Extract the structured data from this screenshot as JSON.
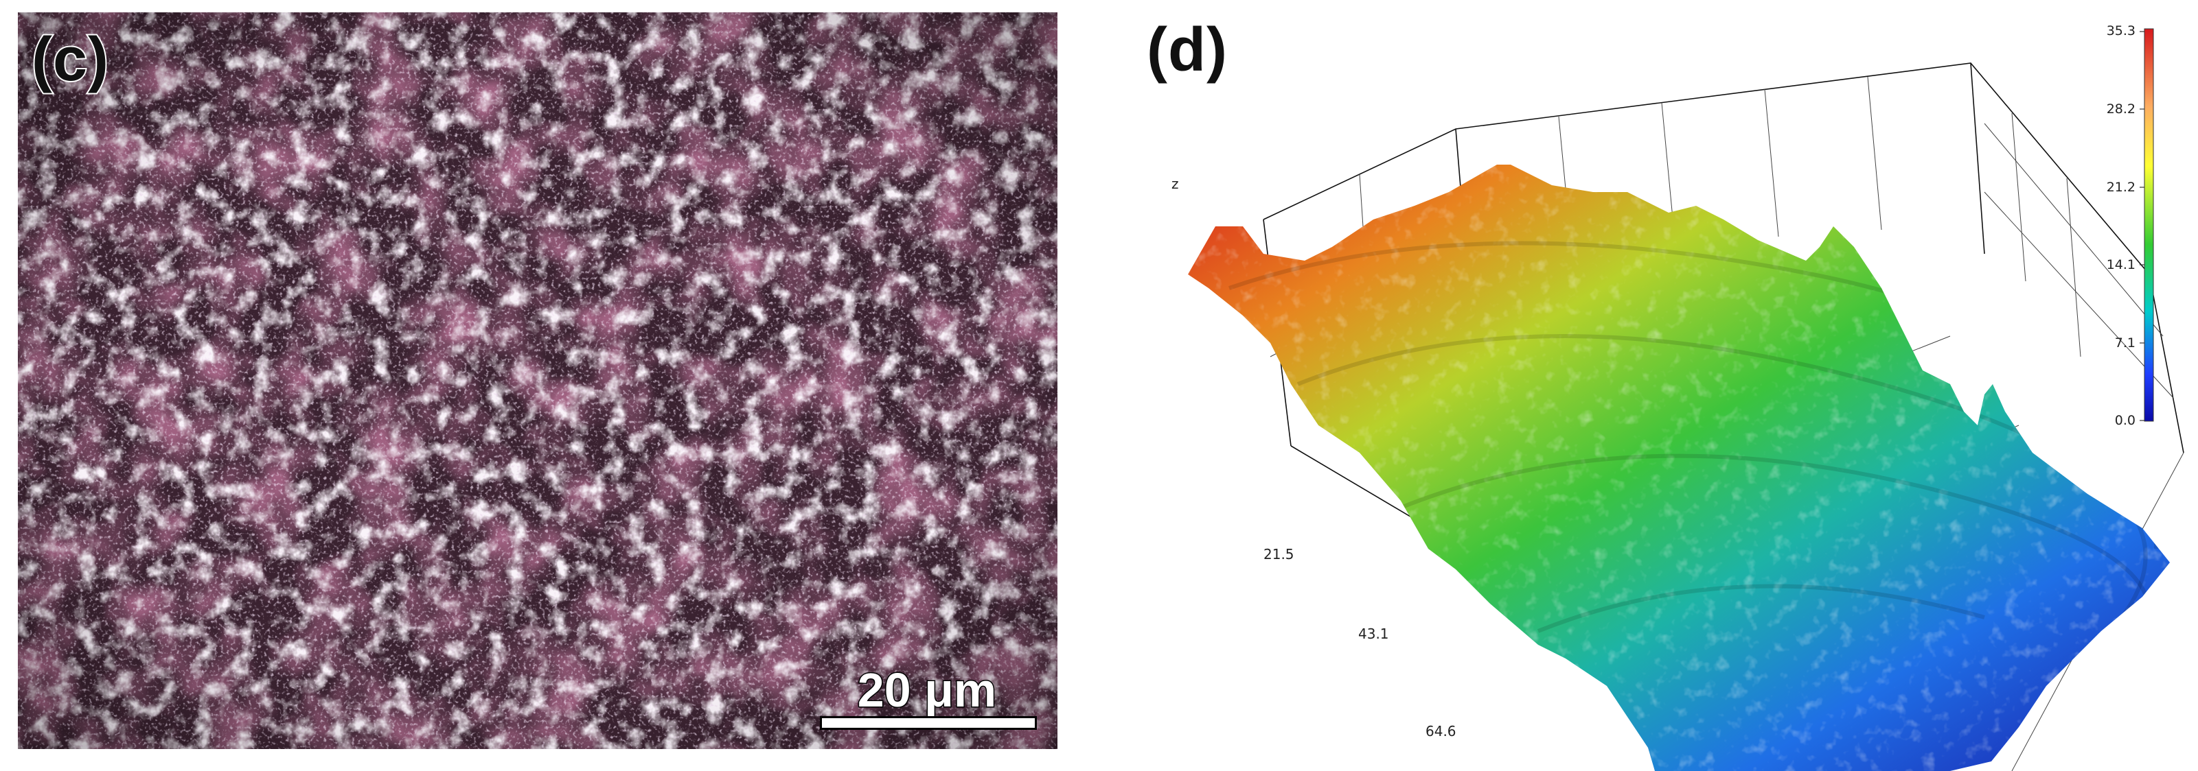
{
  "panel_c": {
    "label": "(c)",
    "scale_bar_text": "20 μm"
  },
  "panel_d": {
    "label": "(d)",
    "z_axis_label": "z",
    "axis_ticks": [
      "21.5",
      "43.1",
      "64.6"
    ],
    "colorbar": {
      "ticks": [
        "35.3",
        "28.2",
        "21.2",
        "14.1",
        "7.1",
        "0.0"
      ],
      "colors": [
        "#d7191c",
        "#fdae61",
        "#ffff33",
        "#33cc33",
        "#00cccc",
        "#1f3fff",
        "#0a0aa8"
      ]
    }
  }
}
